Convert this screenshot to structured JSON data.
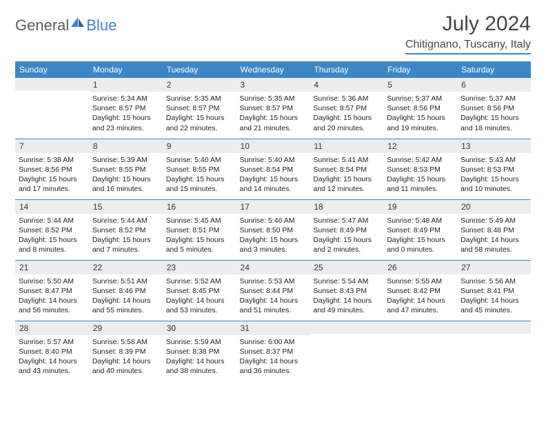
{
  "brand": {
    "part1": "General",
    "part2": "Blue"
  },
  "title": "July 2024",
  "location": "Chitignano, Tuscany, Italy",
  "colors": {
    "accent": "#3d86c6",
    "headerBg": "#3d86c6",
    "headerText": "#ffffff",
    "dayBg": "#ececec",
    "border": "#3d86c6"
  },
  "weekdays": [
    "Sunday",
    "Monday",
    "Tuesday",
    "Wednesday",
    "Thursday",
    "Friday",
    "Saturday"
  ],
  "weeks": [
    [
      {
        "n": "",
        "lines": [
          "",
          "",
          "",
          ""
        ]
      },
      {
        "n": "1",
        "lines": [
          "Sunrise: 5:34 AM",
          "Sunset: 8:57 PM",
          "Daylight: 15 hours",
          "and 23 minutes."
        ]
      },
      {
        "n": "2",
        "lines": [
          "Sunrise: 5:35 AM",
          "Sunset: 8:57 PM",
          "Daylight: 15 hours",
          "and 22 minutes."
        ]
      },
      {
        "n": "3",
        "lines": [
          "Sunrise: 5:35 AM",
          "Sunset: 8:57 PM",
          "Daylight: 15 hours",
          "and 21 minutes."
        ]
      },
      {
        "n": "4",
        "lines": [
          "Sunrise: 5:36 AM",
          "Sunset: 8:57 PM",
          "Daylight: 15 hours",
          "and 20 minutes."
        ]
      },
      {
        "n": "5",
        "lines": [
          "Sunrise: 5:37 AM",
          "Sunset: 8:56 PM",
          "Daylight: 15 hours",
          "and 19 minutes."
        ]
      },
      {
        "n": "6",
        "lines": [
          "Sunrise: 5:37 AM",
          "Sunset: 8:56 PM",
          "Daylight: 15 hours",
          "and 18 minutes."
        ]
      }
    ],
    [
      {
        "n": "7",
        "lines": [
          "Sunrise: 5:38 AM",
          "Sunset: 8:56 PM",
          "Daylight: 15 hours",
          "and 17 minutes."
        ]
      },
      {
        "n": "8",
        "lines": [
          "Sunrise: 5:39 AM",
          "Sunset: 8:55 PM",
          "Daylight: 15 hours",
          "and 16 minutes."
        ]
      },
      {
        "n": "9",
        "lines": [
          "Sunrise: 5:40 AM",
          "Sunset: 8:55 PM",
          "Daylight: 15 hours",
          "and 15 minutes."
        ]
      },
      {
        "n": "10",
        "lines": [
          "Sunrise: 5:40 AM",
          "Sunset: 8:54 PM",
          "Daylight: 15 hours",
          "and 14 minutes."
        ]
      },
      {
        "n": "11",
        "lines": [
          "Sunrise: 5:41 AM",
          "Sunset: 8:54 PM",
          "Daylight: 15 hours",
          "and 12 minutes."
        ]
      },
      {
        "n": "12",
        "lines": [
          "Sunrise: 5:42 AM",
          "Sunset: 8:53 PM",
          "Daylight: 15 hours",
          "and 11 minutes."
        ]
      },
      {
        "n": "13",
        "lines": [
          "Sunrise: 5:43 AM",
          "Sunset: 8:53 PM",
          "Daylight: 15 hours",
          "and 10 minutes."
        ]
      }
    ],
    [
      {
        "n": "14",
        "lines": [
          "Sunrise: 5:44 AM",
          "Sunset: 8:52 PM",
          "Daylight: 15 hours",
          "and 8 minutes."
        ]
      },
      {
        "n": "15",
        "lines": [
          "Sunrise: 5:44 AM",
          "Sunset: 8:52 PM",
          "Daylight: 15 hours",
          "and 7 minutes."
        ]
      },
      {
        "n": "16",
        "lines": [
          "Sunrise: 5:45 AM",
          "Sunset: 8:51 PM",
          "Daylight: 15 hours",
          "and 5 minutes."
        ]
      },
      {
        "n": "17",
        "lines": [
          "Sunrise: 5:46 AM",
          "Sunset: 8:50 PM",
          "Daylight: 15 hours",
          "and 3 minutes."
        ]
      },
      {
        "n": "18",
        "lines": [
          "Sunrise: 5:47 AM",
          "Sunset: 8:49 PM",
          "Daylight: 15 hours",
          "and 2 minutes."
        ]
      },
      {
        "n": "19",
        "lines": [
          "Sunrise: 5:48 AM",
          "Sunset: 8:49 PM",
          "Daylight: 15 hours",
          "and 0 minutes."
        ]
      },
      {
        "n": "20",
        "lines": [
          "Sunrise: 5:49 AM",
          "Sunset: 8:48 PM",
          "Daylight: 14 hours",
          "and 58 minutes."
        ]
      }
    ],
    [
      {
        "n": "21",
        "lines": [
          "Sunrise: 5:50 AM",
          "Sunset: 8:47 PM",
          "Daylight: 14 hours",
          "and 56 minutes."
        ]
      },
      {
        "n": "22",
        "lines": [
          "Sunrise: 5:51 AM",
          "Sunset: 8:46 PM",
          "Daylight: 14 hours",
          "and 55 minutes."
        ]
      },
      {
        "n": "23",
        "lines": [
          "Sunrise: 5:52 AM",
          "Sunset: 8:45 PM",
          "Daylight: 14 hours",
          "and 53 minutes."
        ]
      },
      {
        "n": "24",
        "lines": [
          "Sunrise: 5:53 AM",
          "Sunset: 8:44 PM",
          "Daylight: 14 hours",
          "and 51 minutes."
        ]
      },
      {
        "n": "25",
        "lines": [
          "Sunrise: 5:54 AM",
          "Sunset: 8:43 PM",
          "Daylight: 14 hours",
          "and 49 minutes."
        ]
      },
      {
        "n": "26",
        "lines": [
          "Sunrise: 5:55 AM",
          "Sunset: 8:42 PM",
          "Daylight: 14 hours",
          "and 47 minutes."
        ]
      },
      {
        "n": "27",
        "lines": [
          "Sunrise: 5:56 AM",
          "Sunset: 8:41 PM",
          "Daylight: 14 hours",
          "and 45 minutes."
        ]
      }
    ],
    [
      {
        "n": "28",
        "lines": [
          "Sunrise: 5:57 AM",
          "Sunset: 8:40 PM",
          "Daylight: 14 hours",
          "and 43 minutes."
        ]
      },
      {
        "n": "29",
        "lines": [
          "Sunrise: 5:58 AM",
          "Sunset: 8:39 PM",
          "Daylight: 14 hours",
          "and 40 minutes."
        ]
      },
      {
        "n": "30",
        "lines": [
          "Sunrise: 5:59 AM",
          "Sunset: 8:38 PM",
          "Daylight: 14 hours",
          "and 38 minutes."
        ]
      },
      {
        "n": "31",
        "lines": [
          "Sunrise: 6:00 AM",
          "Sunset: 8:37 PM",
          "Daylight: 14 hours",
          "and 36 minutes."
        ]
      },
      {
        "n": "",
        "lines": [
          "",
          "",
          "",
          ""
        ]
      },
      {
        "n": "",
        "lines": [
          "",
          "",
          "",
          ""
        ]
      },
      {
        "n": "",
        "lines": [
          "",
          "",
          "",
          ""
        ]
      }
    ]
  ]
}
